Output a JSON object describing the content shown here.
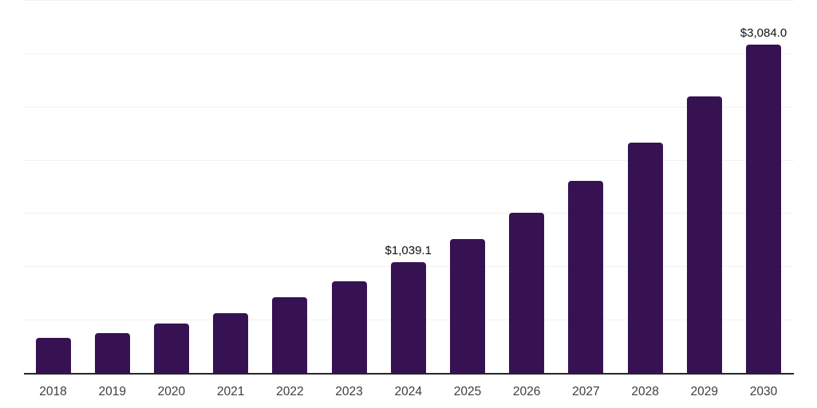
{
  "chart_data": {
    "type": "bar",
    "title": "",
    "xlabel": "",
    "ylabel": "",
    "categories": [
      "2018",
      "2019",
      "2020",
      "2021",
      "2022",
      "2023",
      "2024",
      "2025",
      "2026",
      "2027",
      "2028",
      "2029",
      "2030"
    ],
    "values": [
      330,
      374,
      465,
      563,
      708,
      858,
      1039.1,
      1255,
      1500,
      1805,
      2165,
      2595,
      3084.0
    ],
    "data_labels": [
      null,
      null,
      null,
      null,
      null,
      null,
      "$1,039.1",
      null,
      null,
      null,
      null,
      null,
      "$3,084.0"
    ],
    "ylim": [
      0,
      3500
    ],
    "grid": {
      "show": true,
      "interval": 500,
      "color": "#f1f1f4"
    },
    "legend_position": "none",
    "colors": {
      "bar": "#371253",
      "axis_line": "#262626",
      "tick_label": "#3d3d3d",
      "data_label": "#111111",
      "gridline": "#f1f1f4",
      "background": "#ffffff"
    }
  }
}
